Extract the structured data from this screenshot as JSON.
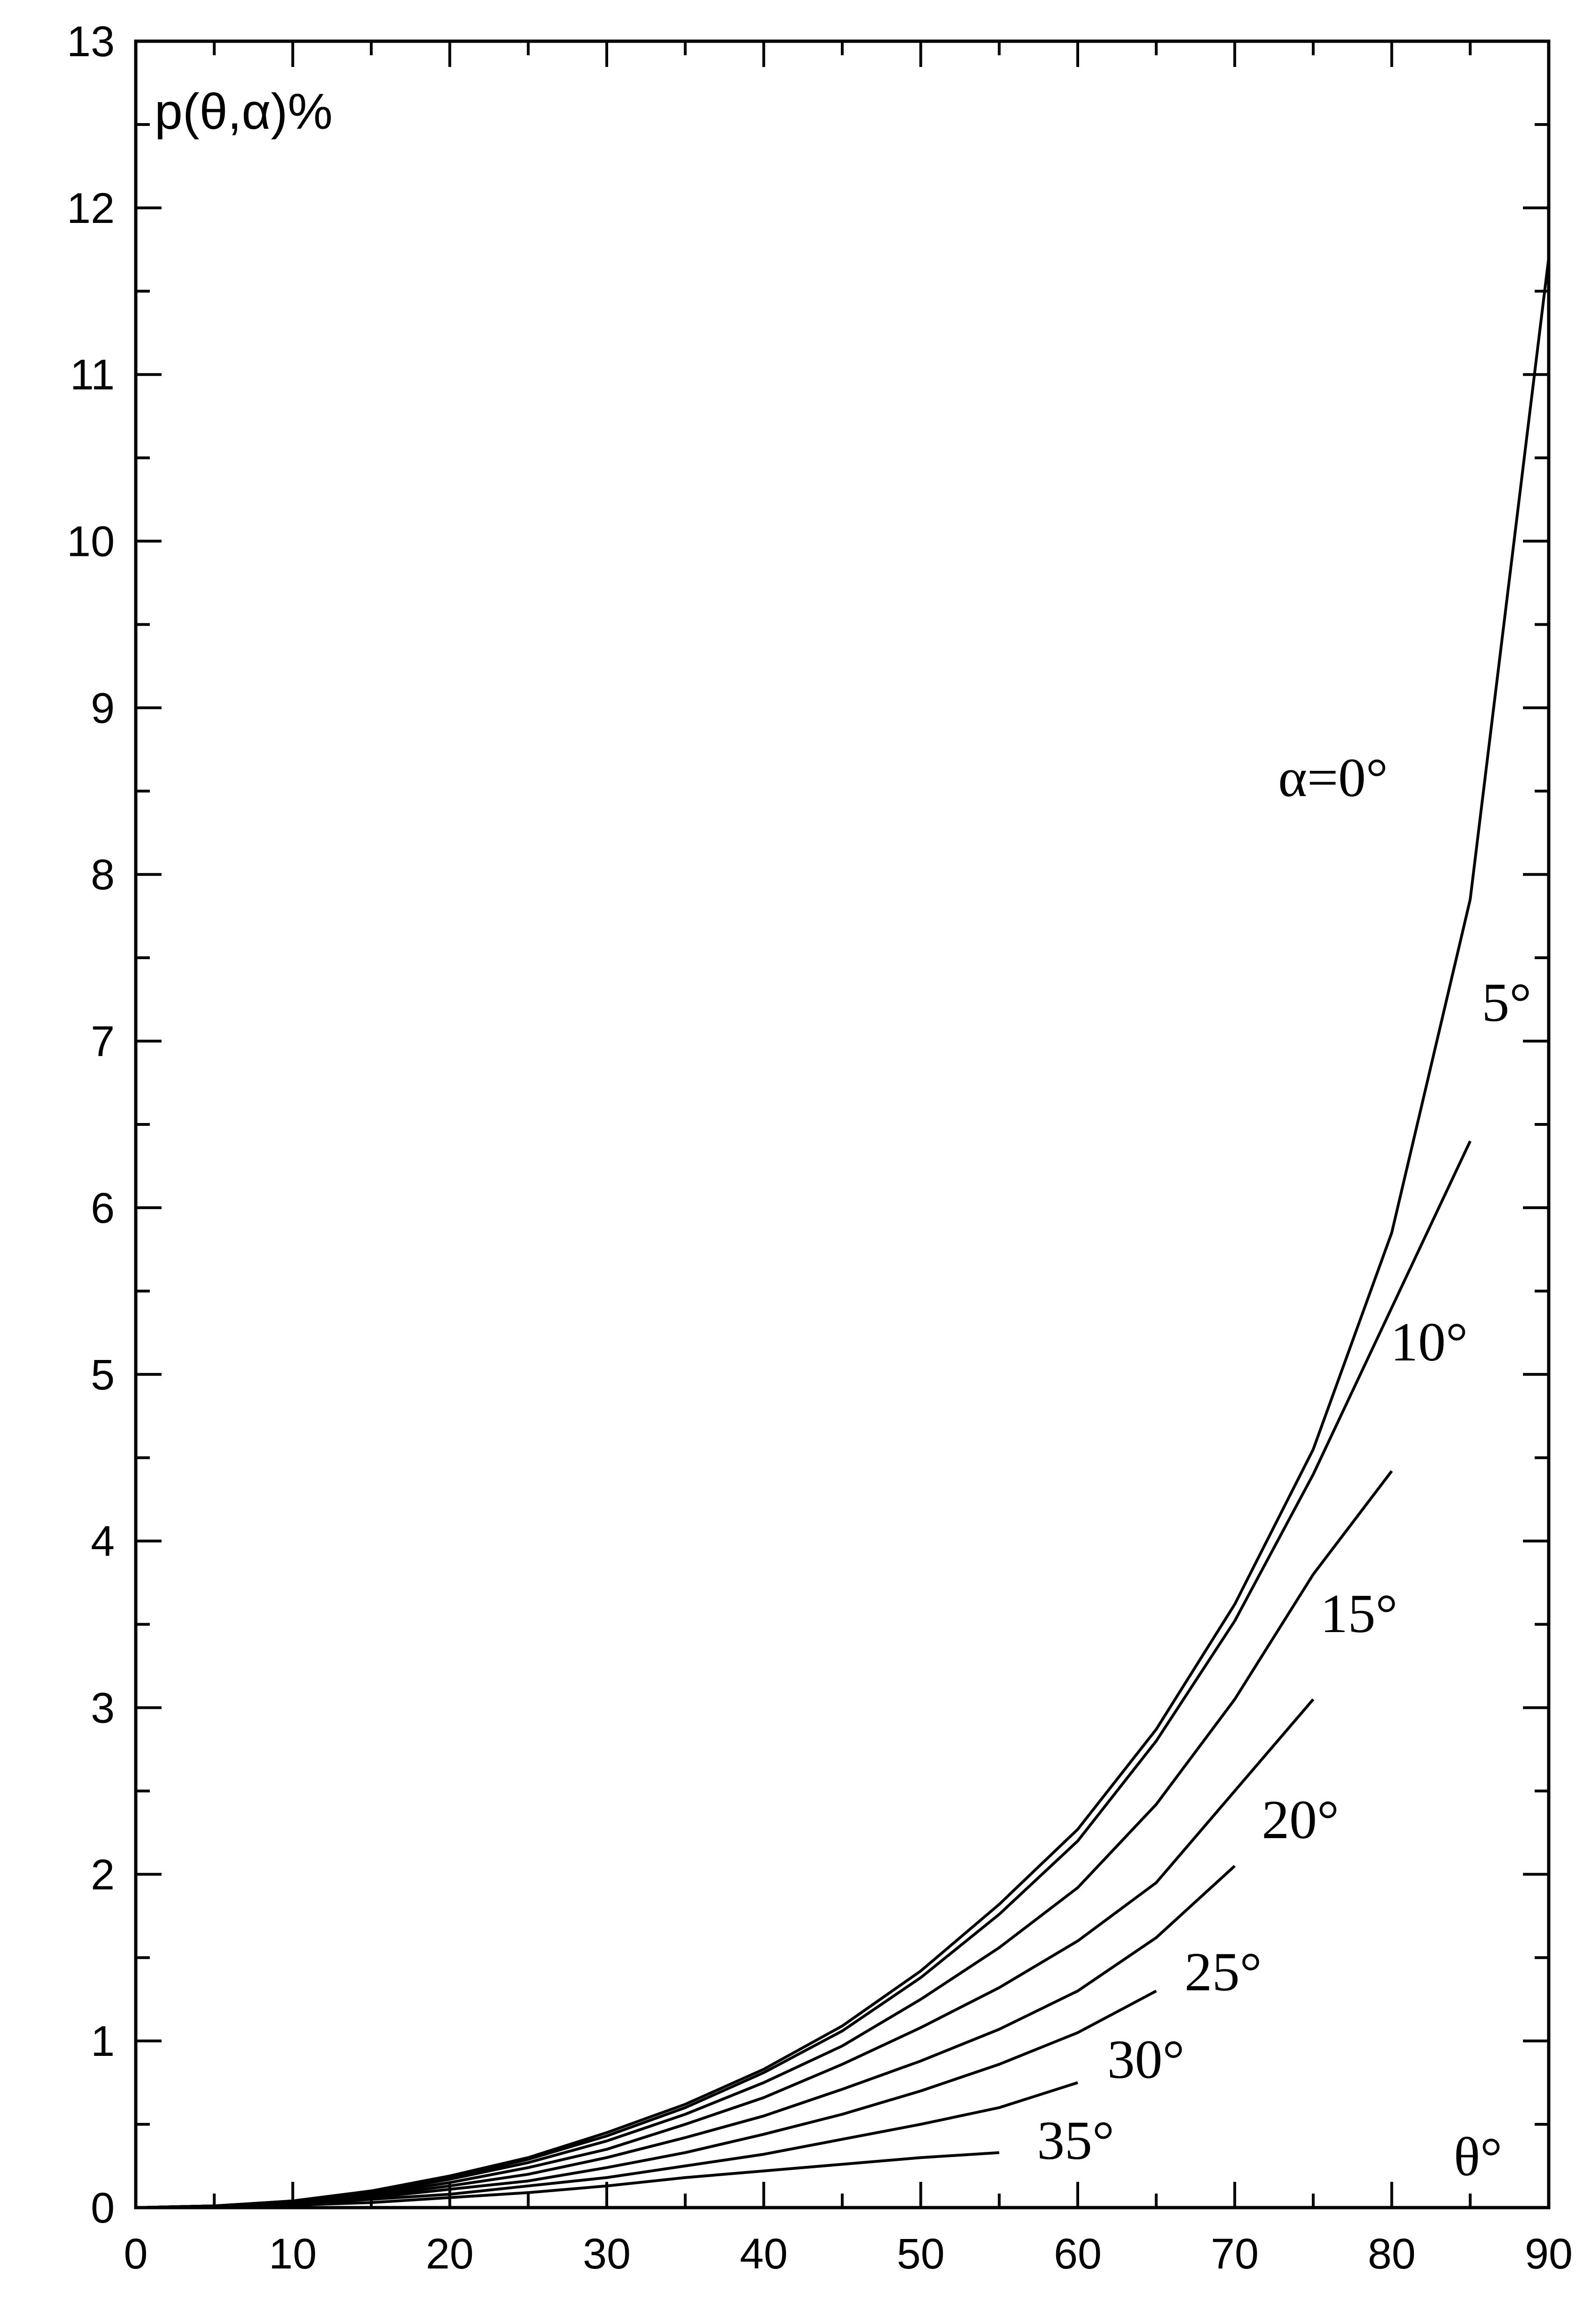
{
  "chart_data": {
    "type": "line",
    "ylabel": "p(θ,α)%",
    "xlabel": "θ°",
    "xlim": [
      0,
      90
    ],
    "ylim": [
      0,
      13
    ],
    "x_ticks": [
      0,
      10,
      20,
      30,
      40,
      50,
      60,
      70,
      80,
      90
    ],
    "y_ticks": [
      0,
      1,
      2,
      3,
      4,
      5,
      6,
      7,
      8,
      9,
      10,
      11,
      12,
      13
    ],
    "grid": false,
    "series": [
      {
        "name": "α=0°",
        "x": [
          0,
          5,
          10,
          15,
          20,
          25,
          30,
          35,
          40,
          45,
          50,
          55,
          60,
          65,
          70,
          75,
          80,
          85,
          90
        ],
        "values": [
          0,
          0.01,
          0.04,
          0.1,
          0.19,
          0.3,
          0.45,
          0.62,
          0.83,
          1.09,
          1.42,
          1.82,
          2.27,
          2.87,
          3.62,
          4.55,
          5.85,
          7.85,
          11.7
        ]
      },
      {
        "name": "5°",
        "x": [
          0,
          5,
          10,
          15,
          20,
          25,
          30,
          35,
          40,
          45,
          50,
          55,
          60,
          65,
          70,
          75,
          80,
          85
        ],
        "values": [
          0,
          0.01,
          0.04,
          0.1,
          0.18,
          0.29,
          0.43,
          0.6,
          0.81,
          1.06,
          1.38,
          1.76,
          2.2,
          2.8,
          3.52,
          4.4,
          5.4,
          6.4
        ]
      },
      {
        "name": "10°",
        "x": [
          0,
          5,
          10,
          15,
          20,
          25,
          30,
          35,
          40,
          45,
          50,
          55,
          60,
          65,
          70,
          75,
          80
        ],
        "values": [
          0,
          0.01,
          0.03,
          0.09,
          0.17,
          0.27,
          0.4,
          0.56,
          0.75,
          0.97,
          1.25,
          1.56,
          1.92,
          2.42,
          3.05,
          3.8,
          4.42
        ]
      },
      {
        "name": "15°",
        "x": [
          0,
          5,
          10,
          15,
          20,
          25,
          30,
          35,
          40,
          45,
          50,
          55,
          60,
          65,
          70,
          75
        ],
        "values": [
          0,
          0.01,
          0.03,
          0.08,
          0.15,
          0.24,
          0.35,
          0.5,
          0.66,
          0.86,
          1.08,
          1.32,
          1.6,
          1.95,
          2.5,
          3.05
        ]
      },
      {
        "name": "20°",
        "x": [
          0,
          5,
          10,
          15,
          20,
          25,
          30,
          35,
          40,
          45,
          50,
          55,
          60,
          65,
          70
        ],
        "values": [
          0,
          0.01,
          0.03,
          0.07,
          0.13,
          0.2,
          0.3,
          0.42,
          0.55,
          0.71,
          0.88,
          1.07,
          1.3,
          1.62,
          2.05
        ]
      },
      {
        "name": "25°",
        "x": [
          0,
          5,
          10,
          15,
          20,
          25,
          30,
          35,
          40,
          45,
          50,
          55,
          60,
          65
        ],
        "values": [
          0,
          0.01,
          0.02,
          0.06,
          0.11,
          0.16,
          0.24,
          0.33,
          0.44,
          0.56,
          0.7,
          0.86,
          1.05,
          1.3
        ]
      },
      {
        "name": "30°",
        "x": [
          0,
          5,
          10,
          15,
          20,
          25,
          30,
          35,
          40,
          45,
          50,
          55,
          60
        ],
        "values": [
          0,
          0.01,
          0.02,
          0.05,
          0.08,
          0.13,
          0.18,
          0.25,
          0.32,
          0.41,
          0.5,
          0.6,
          0.75
        ]
      },
      {
        "name": "35°",
        "x": [
          0,
          5,
          10,
          15,
          20,
          25,
          30,
          35,
          40,
          45,
          50,
          55
        ],
        "values": [
          0,
          0.005,
          0.015,
          0.03,
          0.06,
          0.09,
          0.13,
          0.18,
          0.22,
          0.26,
          0.3,
          0.33
        ]
      }
    ]
  }
}
